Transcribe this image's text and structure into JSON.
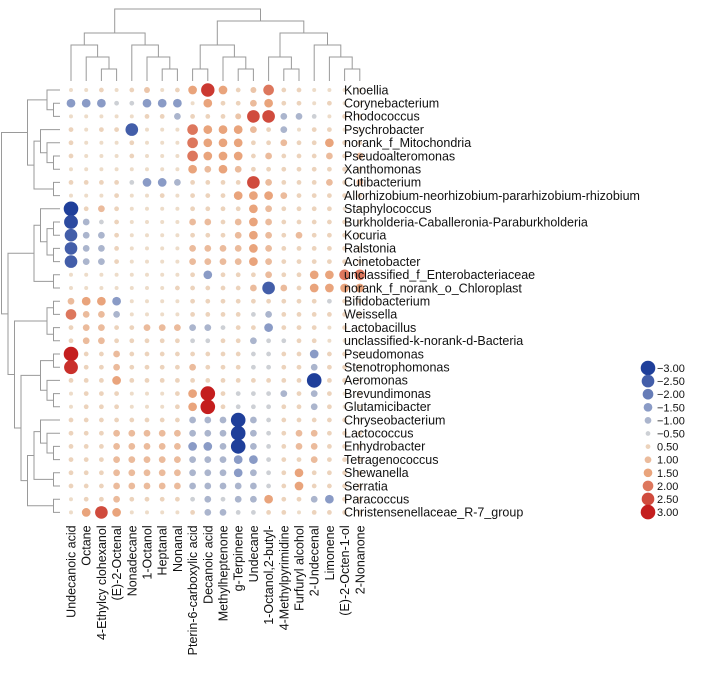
{
  "chart_data": {
    "type": "heatmap",
    "title": "",
    "xlabel": "",
    "ylabel": "",
    "rows": [
      "Knoellia",
      "Corynebacterium",
      "Rhodococcus",
      "Psychrobacter",
      "norank_f_Mitochondria",
      "Pseudoalteromonas",
      "Xanthomonas",
      "Cutibacterium",
      "Allorhizobium-neorhizobium-pararhizobium-rhizobium",
      "Staphylococcus",
      "Burkholderia-Caballeronia-Paraburkholderia",
      "Kocuria",
      "Ralstonia",
      "Acinetobacter",
      "unclassified_f_Enterobacteriaceae",
      "norank_f_norank_o_Chloroplast",
      "Bifidobacterium",
      "Weissella",
      "Lactobacillus",
      "unclassified-k-norank-d-Bacteria",
      "Pseudomonas",
      "Stenotrophomonas",
      "Aeromonas",
      "Brevundimonas",
      "Glutamicibacter",
      "Chryseobacterium",
      "Lactococcus",
      "Enhydrobacter",
      "Tetragenococcus",
      "Shewanella",
      "Serratia",
      "Paracoccus",
      "Christensenellaceae_R-7_group"
    ],
    "columns": [
      "Undecanoic acid",
      "Octane",
      "4-Ethylcy clohexanol",
      "(E)-2-Octenal",
      "Nonadecane",
      "1-Octanol",
      "Heptanal",
      "Nonanal",
      "Pterin-6-carboxylic acid",
      "Decanoic acid",
      "Methylheptenone",
      "g-Terpinene",
      "Undecane",
      "1-Octanol,2-butyl-",
      "4-Methylpyrimidine",
      "Furfuryl alcohol",
      "2-Undecenal",
      "Limonene",
      "(E)-2-Octen-1-ol",
      "2-Nonanone"
    ],
    "values": [
      [
        0.3,
        0.3,
        0.5,
        0.3,
        0.5,
        0.8,
        0.3,
        0.5,
        1.5,
        2.7,
        1.5,
        0.5,
        0.8,
        2.0,
        0.5,
        0.5,
        0.3,
        0.3,
        0.3,
        0.3
      ],
      [
        -1.5,
        -1.5,
        -1.5,
        -0.5,
        -0.5,
        -1.5,
        -1.5,
        -1.5,
        0.3,
        1.5,
        0.5,
        0.5,
        1.0,
        1.5,
        0.5,
        0.5,
        0.3,
        0.5,
        0.3,
        0.3
      ],
      [
        0.3,
        0.3,
        0.3,
        0.3,
        0.3,
        0.5,
        0.5,
        -1.0,
        0.5,
        0.5,
        0.5,
        0.8,
        2.5,
        2.5,
        -1.0,
        -1.0,
        -0.5,
        0.3,
        0.5,
        0.5
      ],
      [
        0.5,
        0.3,
        0.5,
        0.5,
        -2.5,
        0.3,
        0.3,
        0.3,
        2.0,
        1.5,
        1.5,
        1.5,
        1.0,
        0.5,
        -1.0,
        0.3,
        0.5,
        0.5,
        0.3,
        0.3
      ],
      [
        0.5,
        0.3,
        0.3,
        0.3,
        0.5,
        0.3,
        0.3,
        0.3,
        2.0,
        1.5,
        1.5,
        1.5,
        0.5,
        0.5,
        1.0,
        0.5,
        0.5,
        1.5,
        0.5,
        0.5
      ],
      [
        0.5,
        0.3,
        0.3,
        0.3,
        0.5,
        0.3,
        0.3,
        0.3,
        2.0,
        1.5,
        1.5,
        1.5,
        0.5,
        1.0,
        0.5,
        0.5,
        0.5,
        1.0,
        0.5,
        1.0
      ],
      [
        0.3,
        0.3,
        0.3,
        0.3,
        0.3,
        0.3,
        0.3,
        0.3,
        1.5,
        1.0,
        1.5,
        1.0,
        0.5,
        0.5,
        0.5,
        0.5,
        0.5,
        0.5,
        0.5,
        0.5
      ],
      [
        0.5,
        0.5,
        0.5,
        0.5,
        -0.5,
        -1.5,
        -1.5,
        -1.0,
        0.5,
        0.5,
        0.5,
        0.5,
        2.5,
        1.0,
        0.5,
        0.5,
        0.5,
        1.0,
        0.5,
        1.0
      ],
      [
        0.3,
        0.3,
        0.3,
        0.5,
        0.3,
        0.3,
        0.5,
        0.3,
        0.5,
        0.5,
        0.5,
        1.5,
        1.5,
        1.5,
        1.0,
        0.5,
        0.5,
        0.5,
        0.5,
        0.5
      ],
      [
        -3.0,
        0.5,
        1.0,
        0.5,
        0.3,
        0.3,
        0.3,
        0.3,
        0.5,
        0.5,
        0.5,
        0.5,
        1.5,
        1.0,
        0.5,
        0.5,
        0.5,
        0.5,
        0.3,
        0.3
      ],
      [
        -2.8,
        -1.0,
        -0.5,
        0.5,
        0.3,
        0.3,
        0.3,
        0.3,
        1.0,
        1.0,
        0.5,
        1.0,
        1.5,
        1.0,
        0.5,
        0.5,
        0.5,
        0.5,
        0.5,
        0.5
      ],
      [
        -2.5,
        -1.0,
        -1.0,
        0.5,
        0.3,
        0.3,
        0.3,
        0.3,
        0.5,
        0.5,
        0.5,
        1.0,
        1.5,
        1.0,
        0.5,
        1.0,
        0.5,
        0.5,
        0.5,
        0.5
      ],
      [
        -2.5,
        -1.0,
        -1.0,
        0.5,
        0.3,
        0.3,
        0.3,
        0.3,
        1.0,
        1.0,
        1.0,
        1.0,
        1.5,
        1.0,
        0.5,
        0.5,
        0.5,
        0.5,
        0.5,
        0.5
      ],
      [
        -2.5,
        -1.0,
        -1.0,
        0.5,
        0.3,
        0.3,
        0.3,
        0.3,
        1.0,
        1.0,
        1.0,
        1.0,
        1.5,
        1.0,
        0.5,
        0.5,
        0.5,
        0.5,
        0.5,
        0.5
      ],
      [
        0.3,
        0.3,
        0.3,
        0.3,
        0.3,
        0.3,
        0.3,
        0.3,
        0.5,
        -1.5,
        0.5,
        0.5,
        0.5,
        1.0,
        0.5,
        0.5,
        1.5,
        1.5,
        2.0,
        2.0
      ],
      [
        0.3,
        0.3,
        0.3,
        0.3,
        0.3,
        0.3,
        0.3,
        0.5,
        0.5,
        0.5,
        0.5,
        0.5,
        1.0,
        -2.5,
        1.0,
        0.5,
        1.5,
        1.5,
        1.5,
        1.5
      ],
      [
        1.0,
        1.5,
        1.5,
        -1.5,
        0.3,
        0.3,
        0.3,
        0.3,
        0.5,
        0.5,
        0.5,
        0.5,
        0.5,
        0.5,
        0.5,
        0.5,
        0.5,
        -0.5,
        0.5,
        0.5
      ],
      [
        2.0,
        1.0,
        1.0,
        -1.0,
        0.3,
        0.3,
        0.3,
        0.3,
        0.5,
        0.5,
        0.5,
        0.5,
        -0.5,
        -1.0,
        0.5,
        0.5,
        0.5,
        0.5,
        0.5,
        0.5
      ],
      [
        0.5,
        1.0,
        1.0,
        0.5,
        0.5,
        1.0,
        1.0,
        1.0,
        -1.0,
        -1.0,
        -0.5,
        0.5,
        0.5,
        -1.5,
        0.5,
        0.5,
        0.5,
        0.3,
        0.5,
        0.3
      ],
      [
        0.5,
        1.0,
        1.0,
        0.5,
        0.5,
        0.5,
        0.5,
        0.5,
        -0.5,
        -0.5,
        0.5,
        0.5,
        -1.0,
        -0.5,
        -0.5,
        0.5,
        0.5,
        0.3,
        0.3,
        0.3
      ],
      [
        3.0,
        0.5,
        0.5,
        1.0,
        0.5,
        0.5,
        0.5,
        0.5,
        0.5,
        0.5,
        0.5,
        0.5,
        -0.5,
        -0.5,
        0.5,
        0.5,
        -1.5,
        0.5,
        0.5,
        0.3
      ],
      [
        2.8,
        0.5,
        0.5,
        1.0,
        0.5,
        0.5,
        0.5,
        0.5,
        1.0,
        0.5,
        0.5,
        0.5,
        -0.5,
        -0.5,
        0.5,
        0.5,
        -1.0,
        0.5,
        0.5,
        0.3
      ],
      [
        0.5,
        0.5,
        0.5,
        1.5,
        0.5,
        0.5,
        0.5,
        0.5,
        0.5,
        0.5,
        0.5,
        0.5,
        0.5,
        0.5,
        0.5,
        0.5,
        -3.0,
        0.5,
        0.5,
        0.3
      ],
      [
        0.3,
        0.5,
        0.5,
        0.5,
        0.3,
        0.3,
        0.3,
        0.5,
        1.5,
        3.0,
        0.5,
        -0.5,
        -0.5,
        -0.5,
        -1.0,
        0.5,
        -1.0,
        0.5,
        0.3,
        0.3
      ],
      [
        0.3,
        0.5,
        0.5,
        0.5,
        0.3,
        0.3,
        0.3,
        0.5,
        1.5,
        3.0,
        0.5,
        -0.5,
        -0.5,
        -0.5,
        0.5,
        0.5,
        -1.0,
        0.5,
        0.3,
        0.3
      ],
      [
        0.5,
        0.5,
        0.5,
        0.5,
        0.5,
        0.5,
        0.5,
        0.5,
        -1.0,
        -1.0,
        -1.0,
        -3.0,
        -1.0,
        -0.5,
        0.5,
        0.5,
        0.5,
        0.5,
        0.5,
        0.3
      ],
      [
        0.5,
        0.5,
        0.5,
        1.0,
        1.0,
        1.0,
        1.0,
        1.0,
        -1.0,
        -1.0,
        -1.0,
        -3.0,
        -1.0,
        -0.5,
        0.5,
        1.0,
        1.0,
        0.5,
        0.5,
        0.5
      ],
      [
        0.5,
        0.5,
        0.5,
        1.0,
        1.0,
        1.0,
        1.0,
        1.0,
        -1.5,
        -1.5,
        -1.0,
        -3.0,
        -1.0,
        -0.5,
        0.5,
        1.0,
        1.0,
        0.5,
        0.5,
        0.5
      ],
      [
        0.5,
        0.5,
        0.5,
        1.0,
        1.0,
        1.0,
        1.0,
        1.0,
        -1.0,
        -1.0,
        -1.0,
        -1.5,
        -1.5,
        -0.5,
        0.5,
        0.5,
        1.0,
        0.5,
        0.5,
        0.5
      ],
      [
        0.5,
        0.5,
        0.5,
        1.0,
        1.0,
        1.0,
        1.0,
        1.0,
        -1.0,
        -1.0,
        -1.0,
        -1.5,
        -1.0,
        -0.5,
        0.5,
        1.5,
        0.5,
        0.5,
        0.5,
        0.5
      ],
      [
        0.5,
        0.5,
        0.5,
        1.0,
        1.0,
        1.0,
        1.0,
        1.0,
        -1.0,
        -1.0,
        -1.0,
        -1.0,
        -1.0,
        -0.5,
        0.5,
        1.5,
        0.5,
        0.5,
        0.5,
        0.5
      ],
      [
        0.3,
        0.5,
        0.5,
        1.0,
        0.5,
        0.5,
        0.5,
        0.5,
        -0.5,
        -1.0,
        -0.5,
        -1.0,
        -1.0,
        1.5,
        0.5,
        0.5,
        -1.0,
        -1.5,
        0.5,
        0.5
      ],
      [
        0.3,
        1.5,
        2.5,
        1.5,
        0.3,
        0.3,
        0.3,
        0.3,
        0.5,
        -1.0,
        -1.0,
        -0.5,
        -0.5,
        0.5,
        0.5,
        0.3,
        0.5,
        0.5,
        0.5,
        0.5
      ]
    ],
    "legend": {
      "placement": "right",
      "ticks": [
        -3.0,
        -2.5,
        -2.0,
        -1.5,
        -1.0,
        -0.5,
        0.5,
        1.0,
        1.5,
        2.0,
        2.5,
        3.0
      ],
      "labels": [
        "−3.00",
        "−2.50",
        "−2.00",
        "−1.50",
        "−1.00",
        "−0.50",
        "0.50",
        "1.00",
        "1.50",
        "2.00",
        "2.50",
        "3.00"
      ]
    },
    "colors": {
      "negative": "#1f3f9a",
      "negative_mid": "#8a9bc6",
      "neutral": "#eeeadc",
      "positive_mid": "#e9a47c",
      "positive": "#c41e1e"
    },
    "grid": false,
    "row_dendrogram": true,
    "column_dendrogram": true
  }
}
